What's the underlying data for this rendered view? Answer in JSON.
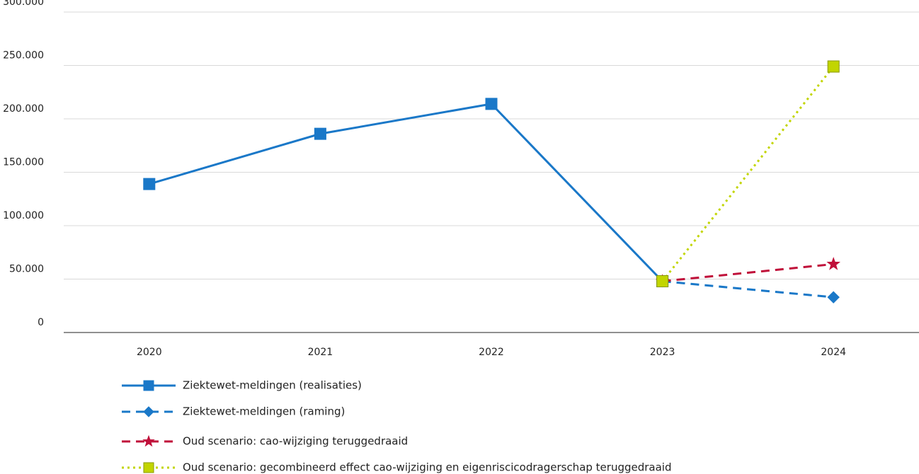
{
  "chart_data": {
    "type": "line",
    "categories": [
      "2020",
      "2021",
      "2022",
      "2023",
      "2024"
    ],
    "series": [
      {
        "name": "Ziektewet-meldingen (realisaties)",
        "color": "#1a78c8",
        "dash": "solid",
        "marker": "square",
        "values": [
          139000,
          186000,
          214000,
          48000,
          null
        ]
      },
      {
        "name": "Ziektewet-meldingen (raming)",
        "color": "#1a78c8",
        "dash": "dashed",
        "marker": "diamond",
        "values": [
          null,
          null,
          null,
          48000,
          33000
        ]
      },
      {
        "name": "Oud scenario: cao-wijziging teruggedraaid",
        "color": "#c0103a",
        "dash": "dashed",
        "marker": "star",
        "values": [
          null,
          null,
          null,
          48000,
          64000
        ]
      },
      {
        "name": "Oud scenario: gecombineerd effect cao-wijziging en eigenriscicodragerschap teruggedraaid",
        "color": "#c2d500",
        "dash": "dotted",
        "marker": "square",
        "values": [
          null,
          null,
          null,
          48000,
          249000
        ]
      }
    ],
    "ylim": [
      0,
      300000
    ],
    "yticks": [
      0,
      {
        "value": 50000,
        "label": "50.000"
      },
      {
        "value": 100000,
        "label": "100.000"
      },
      {
        "value": 150000,
        "label": "150.000"
      },
      {
        "value": 200000,
        "label": "200.000"
      },
      {
        "value": 250000,
        "label": "250.000"
      },
      {
        "value": 300000,
        "label": "300.000"
      }
    ],
    "grid": true
  }
}
